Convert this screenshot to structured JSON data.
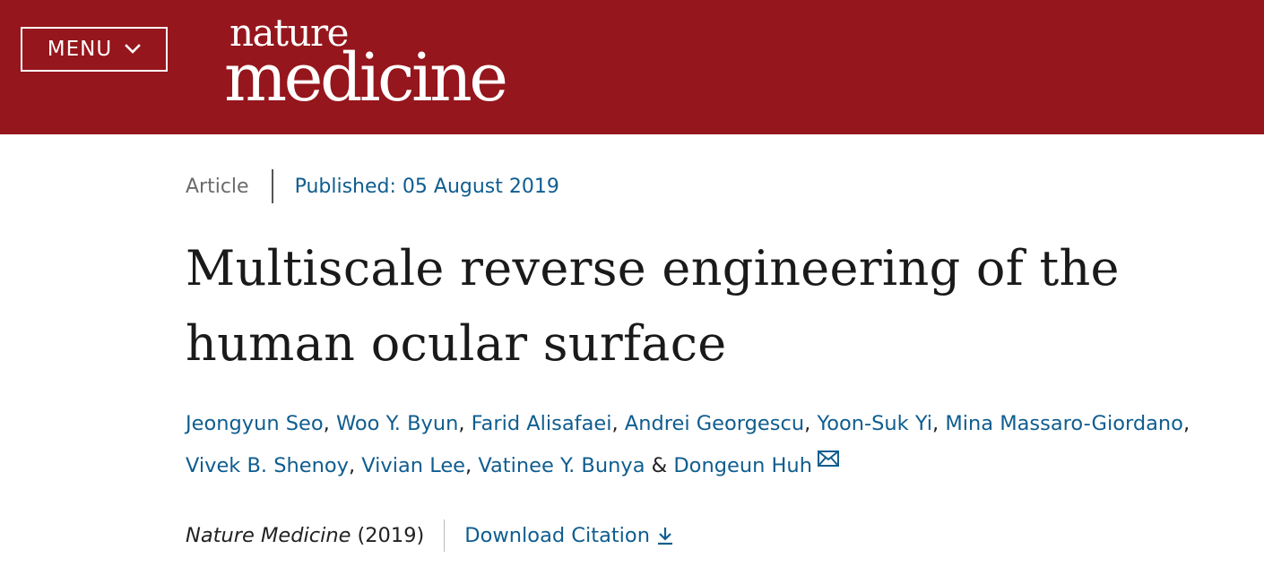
{
  "header": {
    "menu_label": "MENU",
    "logo_line1": "nature",
    "logo_line2": "medicine",
    "background_color": "#95161c"
  },
  "article": {
    "type": "Article",
    "published": "Published: 05 August 2019",
    "title_line1": "Multiscale reverse engineering of the",
    "title_line2": "human ocular surface",
    "authors": [
      "Jeongyun Seo",
      "Woo Y. Byun",
      "Farid Alisafaei",
      "Andrei Georgescu",
      "Yoon-Suk Yi",
      "Mina Massaro-Giordano",
      "Vivek B. Shenoy",
      "Vivian Lee",
      "Vatinee Y. Bunya",
      "Dongeun Huh"
    ],
    "author_separator": ", ",
    "author_last_separator": " & ",
    "journal": "Nature Medicine",
    "year": "(2019)",
    "download_citation": "Download Citation",
    "link_color": "#0f5d8f"
  },
  "icons": {
    "menu": "chevron-down-icon",
    "corresponding_author": "mail-icon",
    "download": "download-arrow-icon"
  }
}
